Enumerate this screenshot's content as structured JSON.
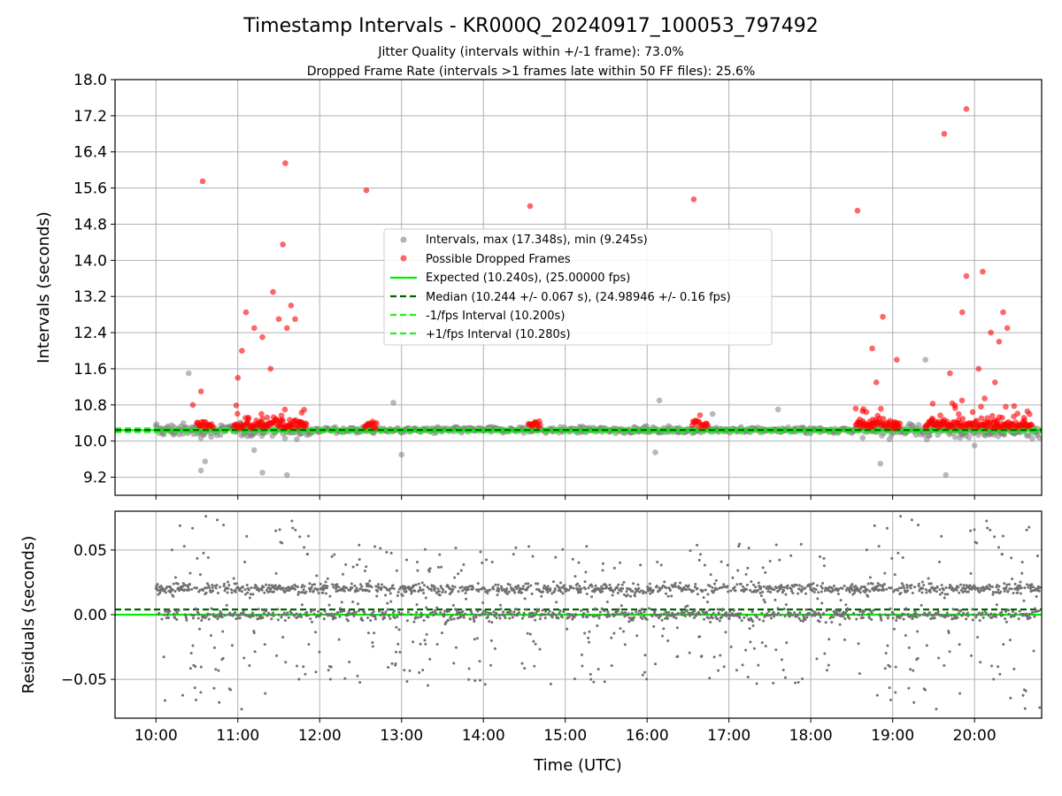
{
  "figure": {
    "title": "Timestamp Intervals - KR000Q_20240917_100053_797492",
    "subtitle_1": "Jitter Quality (intervals within +/-1 frame): 73.0%",
    "subtitle_2": "Dropped Frame Rate (intervals >1 frames late within 50 FF files): 25.6%"
  },
  "chart_data": [
    {
      "type": "scatter",
      "ylabel": "Intervals (seconds)",
      "ylim": [
        8.8,
        18.0
      ],
      "yticks": [
        "9.2",
        "10.0",
        "10.8",
        "11.6",
        "12.4",
        "13.2",
        "14.0",
        "14.8",
        "15.6",
        "16.4",
        "17.2",
        "18.0"
      ],
      "xlim_hours": [
        9.5,
        20.82
      ],
      "grid": true,
      "legend_position": "center",
      "legend": [
        "Intervals, max (17.348s), min (9.245s)",
        "Possible Dropped Frames",
        "Expected (10.240s), (25.00000 fps)",
        "Median (10.244 +/- 0.067 s), (24.98946 +/- 0.16 fps)",
        "-1/fps Interval (10.200s)",
        "+1/fps Interval (10.280s)"
      ],
      "reference_lines": {
        "expected": 10.24,
        "median": 10.244,
        "minus_one_frame": 10.2,
        "plus_one_frame": 10.28
      },
      "series": [
        {
          "name": "Intervals, max (17.348s), min (9.245s)",
          "color": "#808080",
          "outliers": [
            [
              10.4,
              11.5
            ],
            [
              10.6,
              9.55
            ],
            [
              10.55,
              9.35
            ],
            [
              11.2,
              9.8
            ],
            [
              11.3,
              9.3
            ],
            [
              11.6,
              9.25
            ],
            [
              12.9,
              10.85
            ],
            [
              13.0,
              9.7
            ],
            [
              16.15,
              10.9
            ],
            [
              16.1,
              9.75
            ],
            [
              19.4,
              11.8
            ],
            [
              19.65,
              9.25
            ],
            [
              18.85,
              9.5
            ],
            [
              20.0,
              9.9
            ],
            [
              17.6,
              10.7
            ],
            [
              16.8,
              10.6
            ]
          ]
        },
        {
          "name": "Possible Dropped Frames",
          "color": "#ff0000",
          "points": [
            [
              10.57,
              15.75
            ],
            [
              11.58,
              16.15
            ],
            [
              11.55,
              14.35
            ],
            [
              11.43,
              13.3
            ],
            [
              11.1,
              12.85
            ],
            [
              11.65,
              13.0
            ],
            [
              11.05,
              12.0
            ],
            [
              12.57,
              15.55
            ],
            [
              14.57,
              15.2
            ],
            [
              16.57,
              15.35
            ],
            [
              18.57,
              15.1
            ],
            [
              19.63,
              16.8
            ],
            [
              19.9,
              17.35
            ],
            [
              20.1,
              13.75
            ],
            [
              19.9,
              13.65
            ],
            [
              20.35,
              12.85
            ],
            [
              18.88,
              12.75
            ],
            [
              18.75,
              12.05
            ],
            [
              19.05,
              11.8
            ],
            [
              11.2,
              12.5
            ],
            [
              11.3,
              12.3
            ],
            [
              11.5,
              12.7
            ],
            [
              11.6,
              12.5
            ],
            [
              11.7,
              12.7
            ],
            [
              19.85,
              12.85
            ],
            [
              20.2,
              12.4
            ],
            [
              20.3,
              12.2
            ],
            [
              20.4,
              12.5
            ],
            [
              10.45,
              10.8
            ],
            [
              10.55,
              11.1
            ],
            [
              11.0,
              11.4
            ],
            [
              11.4,
              11.6
            ],
            [
              18.8,
              11.3
            ],
            [
              19.7,
              11.5
            ],
            [
              20.05,
              11.6
            ],
            [
              20.25,
              11.3
            ]
          ],
          "clusters": [
            [
              10.5,
              10.7
            ],
            [
              10.95,
              11.85
            ],
            [
              12.55,
              12.7
            ],
            [
              14.55,
              14.7
            ],
            [
              16.55,
              16.75
            ],
            [
              18.55,
              19.1
            ],
            [
              19.4,
              20.7
            ]
          ]
        }
      ]
    },
    {
      "type": "scatter",
      "xlabel": "Time (UTC)",
      "ylabel": "Residuals (seconds)",
      "ylim": [
        -0.08,
        0.08
      ],
      "yticks": [
        "−0.05",
        "0.00",
        "0.05"
      ],
      "xticks": [
        "10:00",
        "11:00",
        "12:00",
        "13:00",
        "14:00",
        "15:00",
        "16:00",
        "17:00",
        "18:00",
        "19:00",
        "20:00"
      ],
      "xlim_hours": [
        9.5,
        20.82
      ],
      "grid": true,
      "reference_lines": {
        "zero": 0.0,
        "median_offset": 0.004
      },
      "series": [
        {
          "name": "Residuals",
          "color": "#707070"
        }
      ]
    }
  ]
}
